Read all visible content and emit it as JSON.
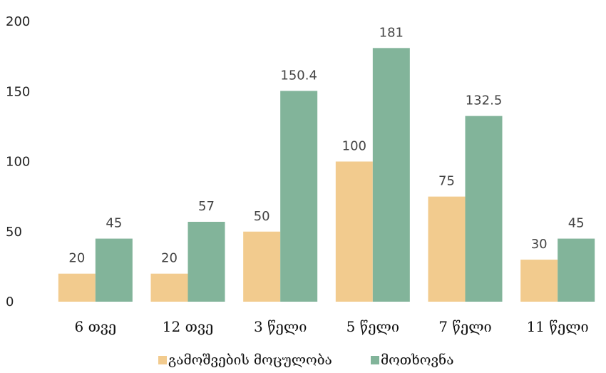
{
  "chart_data": {
    "type": "bar",
    "categories": [
      "6 თვე",
      "12 თვე",
      "3 წელი",
      "5 წელი",
      "7 წელი",
      "11 წელი"
    ],
    "series": [
      {
        "name": "გამოშვების მოცულობა",
        "values": [
          20,
          20,
          50,
          100,
          75,
          30
        ],
        "color": "#F2CB8E"
      },
      {
        "name": "მოთხოვნა",
        "values": [
          45,
          57,
          150.4,
          181,
          132.5,
          45
        ],
        "color": "#82B49A"
      }
    ],
    "data_labels": [
      [
        "20",
        "20",
        "50",
        "100",
        "75",
        "30"
      ],
      [
        "45",
        "57",
        "150.4",
        "181",
        "132.5",
        "45"
      ]
    ],
    "yticks": [
      0,
      50,
      100,
      150,
      200
    ],
    "ylim": [
      0,
      200
    ],
    "grid": false,
    "legend_position": "bottom",
    "title": "",
    "xlabel": "",
    "ylabel": ""
  }
}
